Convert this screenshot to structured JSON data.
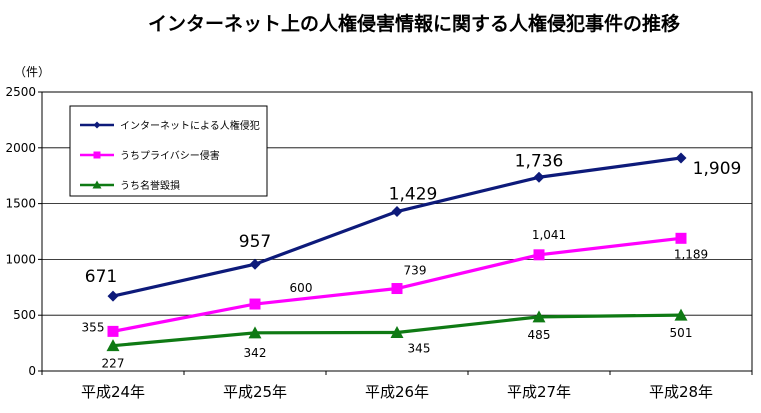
{
  "title": "インターネット上の人権侵害情報に関する人権侵犯事件の推移",
  "unit_label": "（件）",
  "colors": {
    "series1": "#0d1a7a",
    "series2": "#ff00ff",
    "series3": "#0f7a14",
    "grid": "#000000",
    "axis": "#000000"
  },
  "chart_data": {
    "type": "line",
    "title": "インターネット上の人権侵害情報に関する人権侵犯事件の推移",
    "ylabel": "（件）",
    "categories": [
      "平成24年",
      "平成25年",
      "平成26年",
      "平成27年",
      "平成28年"
    ],
    "ylim": [
      0,
      2500
    ],
    "yticks": [
      "0",
      "500",
      "1000",
      "1500",
      "2000",
      "2500"
    ],
    "grid": true,
    "legend_position": "top-left",
    "series": [
      {
        "name": "インターネットによる人権侵犯",
        "values": [
          671,
          957,
          1429,
          1736,
          1909
        ],
        "labels": [
          "671",
          "957",
          "1,429",
          "1,736",
          "1,909"
        ],
        "marker": "diamond",
        "color": "#0d1a7a"
      },
      {
        "name": "うちプライバシー侵害",
        "values": [
          355,
          600,
          739,
          1041,
          1189
        ],
        "labels": [
          "355",
          "600",
          "739",
          "1,041",
          "1,189"
        ],
        "marker": "square",
        "color": "#ff00ff"
      },
      {
        "name": "うち名誉毀損",
        "values": [
          227,
          342,
          345,
          485,
          501
        ],
        "labels": [
          "227",
          "342",
          "345",
          "485",
          "501"
        ],
        "marker": "triangle",
        "color": "#0f7a14"
      }
    ]
  }
}
